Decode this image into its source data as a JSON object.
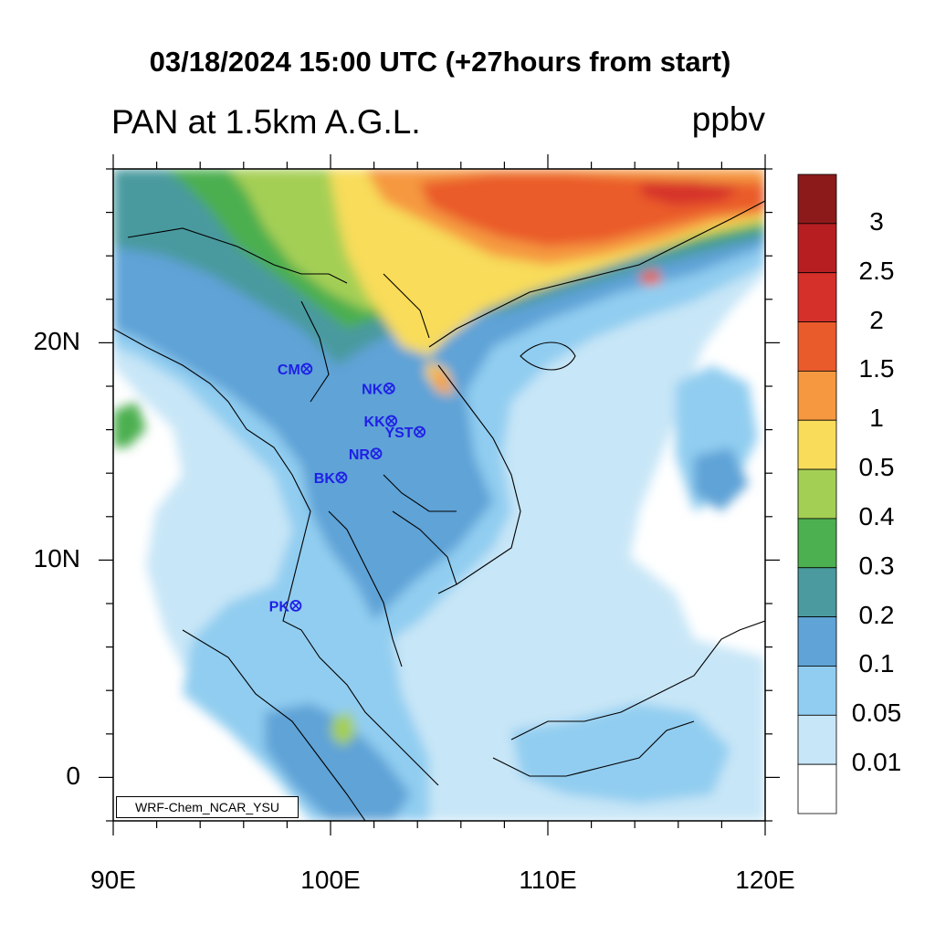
{
  "header": {
    "title": "03/18/2024 15:00 UTC (+27hours from start)",
    "variable": "PAN at 1.5km A.G.L.",
    "units": "ppbv"
  },
  "credit": "WRF-Chem_NCAR_YSU",
  "axes": {
    "lon_range": [
      90,
      120
    ],
    "lat_range": [
      -2,
      28
    ],
    "lon_ticks": [
      {
        "value": 90,
        "label": "90E"
      },
      {
        "value": 100,
        "label": "100E"
      },
      {
        "value": 110,
        "label": "110E"
      },
      {
        "value": 120,
        "label": "120E"
      }
    ],
    "lat_ticks": [
      {
        "value": 20,
        "label": "20N"
      },
      {
        "value": 10,
        "label": "10N"
      },
      {
        "value": 0,
        "label": "0"
      }
    ]
  },
  "colorbar": {
    "levels": [
      "0.01",
      "0.05",
      "0.1",
      "0.2",
      "0.3",
      "0.4",
      "0.5",
      "1",
      "1.5",
      "2",
      "2.5",
      "3"
    ],
    "colors": [
      "#ffffff",
      "#c7e6f7",
      "#91cdf0",
      "#5fa3d7",
      "#4a9a9f",
      "#4caf50",
      "#a4cf55",
      "#f8dc5a",
      "#f5983f",
      "#ea5b2c",
      "#d6302b",
      "#b71e22",
      "#8d1a1b"
    ]
  },
  "stations": [
    {
      "name": "CM",
      "lon": 98.9,
      "lat": 18.8
    },
    {
      "name": "NK",
      "lon": 102.7,
      "lat": 17.9
    },
    {
      "name": "KK",
      "lon": 102.8,
      "lat": 16.4
    },
    {
      "name": "YST",
      "lon": 104.1,
      "lat": 15.9
    },
    {
      "name": "NR",
      "lon": 102.1,
      "lat": 14.9
    },
    {
      "name": "BK",
      "lon": 100.5,
      "lat": 13.8
    },
    {
      "name": "PK",
      "lon": 98.4,
      "lat": 7.9
    }
  ]
}
